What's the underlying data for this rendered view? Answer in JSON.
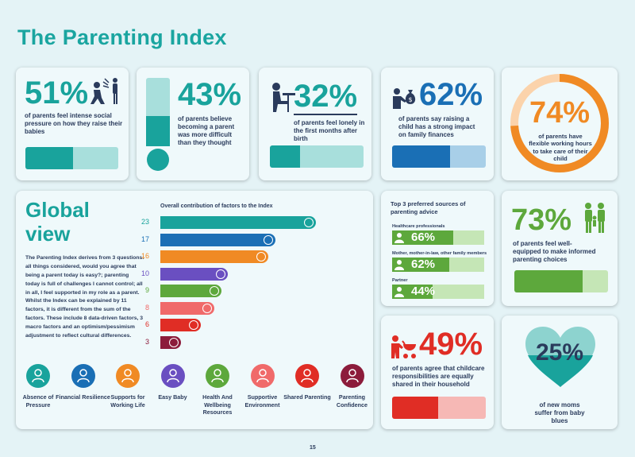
{
  "title": "The Parenting Index",
  "stats": {
    "s51": {
      "value": "51%",
      "text": "of parents feel intense social pressure on how they raise their babies",
      "fraction": 0.51
    },
    "s43": {
      "value": "43%",
      "text": "of parents believe becoming a parent was more difficult than they thought",
      "fraction": 0.43
    },
    "s32": {
      "value": "32%",
      "text": "of parents feel lonely in the first months after birth",
      "fraction": 0.32
    },
    "s62": {
      "value": "62%",
      "text": "of parents say raising a child has a strong impact on family finances",
      "fraction": 0.62
    },
    "s74": {
      "value": "74%",
      "text": "of parents have flexible working hours to take care of their child",
      "fraction": 0.74
    },
    "s73": {
      "value": "73%",
      "text": "of parents feel well-equipped to make informed parenting choices",
      "fraction": 0.73
    },
    "s49": {
      "value": "49%",
      "text": "of parents agree that childcare responsibilities are equally shared in their household",
      "fraction": 0.49
    },
    "s25": {
      "value": "25%",
      "text": "of new moms suffer from baby blues",
      "fraction": 0.25
    }
  },
  "global": {
    "heading_line1": "Global",
    "heading_line2": "view",
    "description": "The Parenting Index derives from 3 questions: all things considered, would you agree that being a parent today is easy?; parenting today is full of challenges I cannot control; all in all, I feel supported in my role as a parent. Whilst the Index can be explained by 11 factors, it is different from the sum of the factors. These include 8 data-driven factors, 3 macro factors and an optimism/pessimism adjustment to reflect cultural differences.",
    "chart_title": "Overall contribution of factors to the Index"
  },
  "chart_data": {
    "type": "bar",
    "title": "Overall contribution of factors to the Index",
    "categories": [
      "Absence of Pressure",
      "Financial Resilience",
      "Supports for Working Life",
      "Easy Baby",
      "Health And Wellbeing Resources",
      "Supportive Environment",
      "Shared Parenting",
      "Parenting Confidence"
    ],
    "values": [
      23,
      17,
      16,
      10,
      9,
      8,
      6,
      3
    ],
    "labels": [
      "23",
      "17",
      "16",
      "10",
      "9",
      "8",
      "6",
      "3"
    ],
    "colors": [
      "#19a39c",
      "#1a6fb5",
      "#f08a24",
      "#6a4fc1",
      "#5da83c",
      "#f06a6a",
      "#e02d25",
      "#8c1c3b"
    ],
    "orientation": "horizontal"
  },
  "factors": [
    {
      "label": "Absence of Pressure",
      "color": "#19a39c",
      "icon": "person-icon"
    },
    {
      "label": "Financial Resilience",
      "color": "#1a6fb5",
      "icon": "handshake-icon"
    },
    {
      "label": "Supports for Working Life",
      "color": "#f08a24",
      "icon": "family-icon"
    },
    {
      "label": "Easy Baby",
      "color": "#6a4fc1",
      "icon": "baby-icon"
    },
    {
      "label": "Health And Wellbeing Resources",
      "color": "#5da83c",
      "icon": "hand-heart-icon"
    },
    {
      "label": "Supportive Environment",
      "color": "#f06a6a",
      "icon": "community-icon"
    },
    {
      "label": "Shared Parenting",
      "color": "#e02d25",
      "icon": "parents-icon"
    },
    {
      "label": "Parenting Confidence",
      "color": "#8c1c3b",
      "icon": "confident-person-icon"
    }
  ],
  "sources": {
    "title": "Top 3 preferred sources of parenting advice",
    "items": [
      {
        "label": "Healthcare professionals",
        "value": "66%",
        "fraction": 0.66
      },
      {
        "label": "Mother, mother-in-law, other family members",
        "value": "62%",
        "fraction": 0.62
      },
      {
        "label": "Partner",
        "value": "44%",
        "fraction": 0.44
      }
    ]
  },
  "page_number": "15",
  "colors": {
    "teal": "#19a39c",
    "light_teal": "#a8dfdc",
    "blue": "#1a6fb5",
    "light_blue": "#a8cfe8",
    "orange": "#f08a24",
    "green": "#5da83c",
    "light_green": "#c5e6b6",
    "red": "#e02d25",
    "light_red": "#f6b8b5",
    "navy": "#2a3b5c"
  }
}
